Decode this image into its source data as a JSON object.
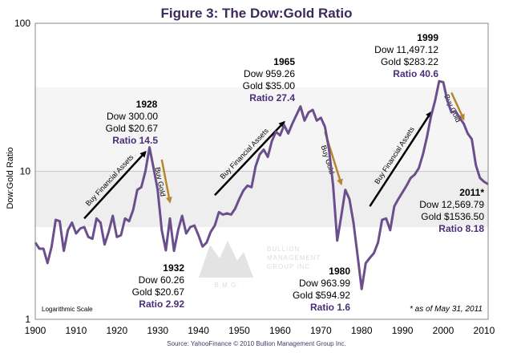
{
  "chart_data": {
    "type": "line",
    "title": "Figure 3: The Dow:Gold Ratio",
    "ylabel": "Dow:Gold Ratio",
    "xlabel": "",
    "yscale": "log",
    "ylim": [
      1,
      100
    ],
    "xlim": [
      1900,
      2011
    ],
    "x_ticks": [
      "1900",
      "1910",
      "1920",
      "1930",
      "1940",
      "1950",
      "1960",
      "1970",
      "1980",
      "1990",
      "2000",
      "2010"
    ],
    "y_ticks": [
      "1",
      "10",
      "100"
    ],
    "scale_note": "Logarithmic Scale",
    "source": "Source: YahooFinance © 2010 Bullion Management Group Inc.",
    "footnote": "* as of May 31, 2011",
    "watermark": {
      "initials": "B.M.G.",
      "line1": "BULLION",
      "line2": "MANAGEMENT",
      "line3": "GROUP INC."
    },
    "line_color": "#6b4e8c",
    "bands": [
      {
        "from": 4.2,
        "to": 10,
        "color": "#eeeeee"
      },
      {
        "from": 10,
        "to": 37,
        "color": "#f5f5f5"
      }
    ],
    "series": [
      {
        "name": "Dow:Gold Ratio",
        "points": [
          [
            1900,
            3.3
          ],
          [
            1901,
            3.0
          ],
          [
            1902,
            3.0
          ],
          [
            1903,
            2.4
          ],
          [
            1904,
            3.1
          ],
          [
            1905,
            4.7
          ],
          [
            1906,
            4.6
          ],
          [
            1907,
            2.9
          ],
          [
            1908,
            4.0
          ],
          [
            1909,
            4.5
          ],
          [
            1910,
            3.8
          ],
          [
            1911,
            4.1
          ],
          [
            1912,
            4.2
          ],
          [
            1913,
            3.6
          ],
          [
            1914,
            3.5
          ],
          [
            1915,
            4.8
          ],
          [
            1916,
            4.5
          ],
          [
            1917,
            3.2
          ],
          [
            1918,
            3.9
          ],
          [
            1919,
            5.0
          ],
          [
            1920,
            3.6
          ],
          [
            1921,
            3.7
          ],
          [
            1922,
            4.8
          ],
          [
            1923,
            4.6
          ],
          [
            1924,
            5.5
          ],
          [
            1925,
            7.5
          ],
          [
            1926,
            7.8
          ],
          [
            1927,
            10.0
          ],
          [
            1928,
            14.5
          ],
          [
            1929,
            10.5
          ],
          [
            1930,
            7.5
          ],
          [
            1931,
            4.0
          ],
          [
            1932,
            2.92
          ],
          [
            1933,
            4.8
          ],
          [
            1934,
            2.9
          ],
          [
            1935,
            4.0
          ],
          [
            1936,
            5.0
          ],
          [
            1937,
            3.8
          ],
          [
            1938,
            4.2
          ],
          [
            1939,
            4.3
          ],
          [
            1940,
            3.7
          ],
          [
            1941,
            3.1
          ],
          [
            1942,
            3.3
          ],
          [
            1943,
            3.9
          ],
          [
            1944,
            4.3
          ],
          [
            1945,
            5.3
          ],
          [
            1946,
            5.1
          ],
          [
            1947,
            5.2
          ],
          [
            1948,
            5.1
          ],
          [
            1949,
            5.6
          ],
          [
            1950,
            6.5
          ],
          [
            1951,
            7.4
          ],
          [
            1952,
            8.0
          ],
          [
            1953,
            7.8
          ],
          [
            1954,
            10.8
          ],
          [
            1955,
            13.0
          ],
          [
            1956,
            14.0
          ],
          [
            1957,
            12.5
          ],
          [
            1958,
            16.0
          ],
          [
            1959,
            18.5
          ],
          [
            1960,
            17.5
          ],
          [
            1961,
            20.5
          ],
          [
            1962,
            18.0
          ],
          [
            1963,
            21.0
          ],
          [
            1964,
            24.0
          ],
          [
            1965,
            27.4
          ],
          [
            1966,
            22.0
          ],
          [
            1967,
            25.0
          ],
          [
            1968,
            26.0
          ],
          [
            1969,
            22.0
          ],
          [
            1970,
            23.0
          ],
          [
            1971,
            20.0
          ],
          [
            1972,
            14.0
          ],
          [
            1973,
            8.0
          ],
          [
            1974,
            3.4
          ],
          [
            1975,
            5.0
          ],
          [
            1976,
            7.5
          ],
          [
            1977,
            6.5
          ],
          [
            1978,
            4.5
          ],
          [
            1979,
            2.7
          ],
          [
            1980,
            1.6
          ],
          [
            1981,
            2.4
          ],
          [
            1982,
            2.6
          ],
          [
            1983,
            2.8
          ],
          [
            1984,
            3.3
          ],
          [
            1985,
            4.7
          ],
          [
            1986,
            4.8
          ],
          [
            1987,
            4.0
          ],
          [
            1988,
            5.8
          ],
          [
            1989,
            6.5
          ],
          [
            1990,
            7.2
          ],
          [
            1991,
            8.0
          ],
          [
            1992,
            9.0
          ],
          [
            1993,
            9.5
          ],
          [
            1994,
            10.5
          ],
          [
            1995,
            13.0
          ],
          [
            1996,
            17.0
          ],
          [
            1997,
            23.5
          ],
          [
            1998,
            30.0
          ],
          [
            1999,
            40.6
          ],
          [
            2000,
            40.0
          ],
          [
            2001,
            30.0
          ],
          [
            2002,
            25.0
          ],
          [
            2003,
            25.5
          ],
          [
            2004,
            23.0
          ],
          [
            2005,
            21.0
          ],
          [
            2006,
            18.0
          ],
          [
            2007,
            16.5
          ],
          [
            2008,
            11.0
          ],
          [
            2009,
            9.0
          ],
          [
            2010,
            8.5
          ],
          [
            2011,
            8.18
          ]
        ]
      }
    ],
    "annotations": [
      {
        "id": "1928",
        "year": "1928",
        "dow": "Dow 300.00",
        "gold": "Gold $20.67",
        "ratio": "Ratio 14.5"
      },
      {
        "id": "1932",
        "year": "1932",
        "dow": "Dow 60.26",
        "gold": "Gold $20.67",
        "ratio": "Ratio 2.92"
      },
      {
        "id": "1965",
        "year": "1965",
        "dow": "Dow 959.26",
        "gold": "Gold $35.00",
        "ratio": "Ratio 27.4"
      },
      {
        "id": "1980",
        "year": "1980",
        "dow": "Dow 963.99",
        "gold": "Gold $594.92",
        "ratio": "Ratio 1.6"
      },
      {
        "id": "1999",
        "year": "1999",
        "dow": "Dow 11,497.12",
        "gold": "Gold $283.22",
        "ratio": "Ratio 40.6"
      },
      {
        "id": "2011",
        "year": "2011*",
        "dow": "Dow 12,569.79",
        "gold": "Gold $1536.50",
        "ratio": "Ratio 8.18"
      }
    ],
    "trend_arrows": [
      {
        "id": "bfa1",
        "label": "Buy Financial Assets",
        "from": [
          1912,
          4.8
        ],
        "to": [
          1927,
          13.5
        ],
        "color": "#000000"
      },
      {
        "id": "bg1",
        "label": "Buy Gold",
        "from": [
          1931,
          12.0
        ],
        "to": [
          1933,
          6.2
        ],
        "color": "#b8862f"
      },
      {
        "id": "bfa2",
        "label": "Buy Financial Assets",
        "from": [
          1944,
          6.9
        ],
        "to": [
          1961,
          21.5
        ],
        "color": "#000000"
      },
      {
        "id": "bg2",
        "label": "Buy Gold",
        "from": [
          1971,
          18.5
        ],
        "to": [
          1975,
          8.2
        ],
        "color": "#b8862f"
      },
      {
        "id": "bfa3",
        "label": "Buy Financial Assets",
        "from": [
          1982,
          5.8
        ],
        "to": [
          1997,
          25.0
        ],
        "color": "#000000"
      },
      {
        "id": "bg3",
        "label": "Buy Gold",
        "from": [
          2002,
          34.0
        ],
        "to": [
          2005,
          22.5
        ],
        "color": "#b8862f"
      }
    ]
  }
}
